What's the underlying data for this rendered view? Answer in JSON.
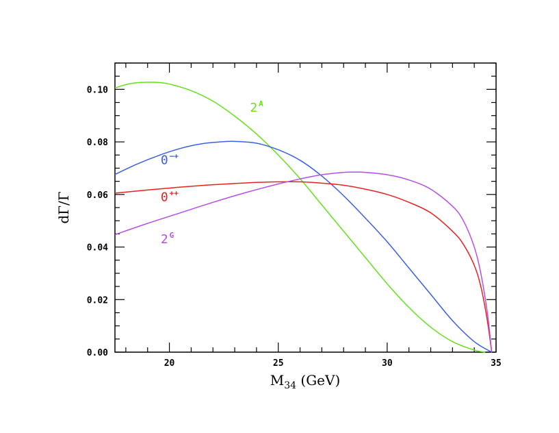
{
  "chart_data": {
    "type": "line",
    "title": "",
    "xlabel": {
      "main": "M",
      "sub": "34",
      "rest": " (GeV)"
    },
    "ylabel": "dΓ/Γ",
    "xlim": [
      17.5,
      35.0
    ],
    "ylim": [
      0.0,
      0.11
    ],
    "x_ticks": [
      20,
      25,
      30,
      35
    ],
    "x_tick_labels": [
      "20",
      "25",
      "30",
      "35"
    ],
    "y_ticks": [
      0.0,
      0.02,
      0.04,
      0.06,
      0.08,
      0.1
    ],
    "y_tick_labels": [
      "0.00",
      "0.02",
      "0.04",
      "0.06",
      "0.08",
      "0.10"
    ],
    "grid": false,
    "series": [
      {
        "name": "2^A",
        "label_base": "2",
        "label_sup": "A",
        "color": "#66e01a",
        "x": [
          17.5,
          18.0,
          18.5,
          19.0,
          19.5,
          20.0,
          21.0,
          22.0,
          23.0,
          24.0,
          25.0,
          26.0,
          27.0,
          28.0,
          29.0,
          30.0,
          31.0,
          32.0,
          33.0,
          34.0,
          34.5
        ],
        "y": [
          0.1005,
          0.1018,
          0.1025,
          0.1027,
          0.1026,
          0.102,
          0.0995,
          0.0955,
          0.0898,
          0.083,
          0.075,
          0.066,
          0.056,
          0.046,
          0.036,
          0.026,
          0.017,
          0.0095,
          0.004,
          0.0008,
          0.0
        ]
      },
      {
        "name": "0^-+",
        "label_base": "0",
        "label_sup": "−+",
        "color": "#3a5ee6",
        "x": [
          17.5,
          18.5,
          19.5,
          20.5,
          21.5,
          22.5,
          23.0,
          24.0,
          25.0,
          26.0,
          27.0,
          28.0,
          29.0,
          30.0,
          31.0,
          32.0,
          33.0,
          34.0,
          34.8
        ],
        "y": [
          0.0676,
          0.0715,
          0.0748,
          0.0775,
          0.0793,
          0.0801,
          0.0802,
          0.0795,
          0.077,
          0.073,
          0.067,
          0.0595,
          0.051,
          0.042,
          0.032,
          0.022,
          0.012,
          0.004,
          0.0
        ]
      },
      {
        "name": "0^++",
        "label_base": "0",
        "label_sup": "++",
        "color": "#e8201e",
        "x": [
          17.5,
          19.0,
          20.5,
          22.0,
          23.5,
          25.0,
          26.0,
          27.0,
          28.0,
          29.0,
          30.0,
          31.0,
          32.0,
          33.0,
          33.5,
          34.0,
          34.3,
          34.6,
          34.8
        ],
        "y": [
          0.0605,
          0.0617,
          0.0628,
          0.0637,
          0.0644,
          0.0648,
          0.0648,
          0.0643,
          0.0635,
          0.062,
          0.06,
          0.057,
          0.053,
          0.046,
          0.041,
          0.033,
          0.025,
          0.012,
          0.0
        ]
      },
      {
        "name": "2^G",
        "label_base": "2",
        "label_sup": "G",
        "color": "#b44ee8",
        "x": [
          17.5,
          19.0,
          20.5,
          22.0,
          23.5,
          25.0,
          26.0,
          27.0,
          28.0,
          28.5,
          29.0,
          30.0,
          31.0,
          32.0,
          33.0,
          33.5,
          34.0,
          34.3,
          34.6,
          34.8
        ],
        "y": [
          0.0447,
          0.049,
          0.053,
          0.057,
          0.0607,
          0.064,
          0.0659,
          0.0675,
          0.0684,
          0.0685,
          0.0684,
          0.0675,
          0.0655,
          0.062,
          0.0555,
          0.05,
          0.04,
          0.03,
          0.015,
          0.0
        ]
      }
    ]
  }
}
